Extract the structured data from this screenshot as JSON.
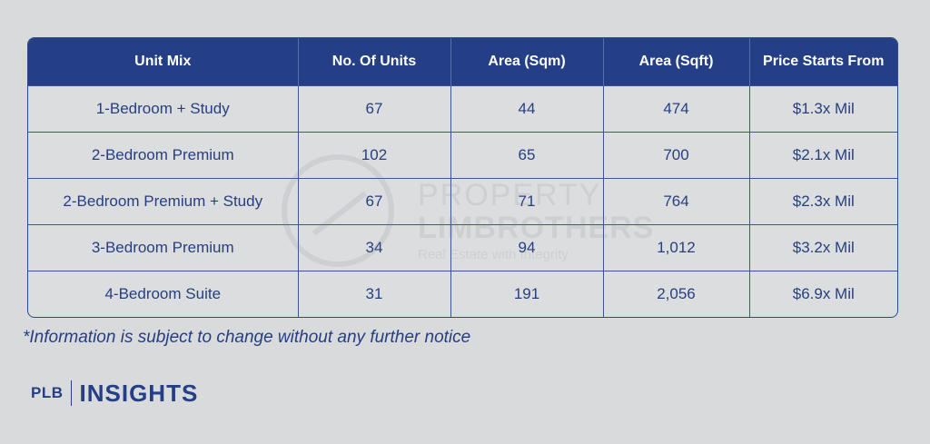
{
  "table": {
    "headers": [
      "Unit Mix",
      "No. Of Units",
      "Area (Sqm)",
      "Area (Sqft)",
      "Price Starts From"
    ],
    "rows": [
      [
        "1-Bedroom + Study",
        "67",
        "44",
        "474",
        "$1.3x Mil"
      ],
      [
        "2-Bedroom Premium",
        "102",
        "65",
        "700",
        "$2.1x Mil"
      ],
      [
        "2-Bedroom Premium + Study",
        "67",
        "71",
        "764",
        "$2.3x Mil"
      ],
      [
        "3-Bedroom Premium",
        "34",
        "94",
        "1,012",
        "$3.2x Mil"
      ],
      [
        "4-Bedroom Suite",
        "31",
        "191",
        "2,056",
        "$6.9x Mil"
      ]
    ]
  },
  "watermark": {
    "line1": "PROPERTY",
    "line2": "LIMBROTHERS",
    "line3": "Real Estate with Integrity"
  },
  "note": "*Information is subject to change without any further notice",
  "brand": {
    "short": "PLB",
    "name": "INSIGHTS"
  },
  "colors": {
    "header_bg": "#243f86",
    "text": "#263f80",
    "page_bg": "#d9dadc"
  }
}
